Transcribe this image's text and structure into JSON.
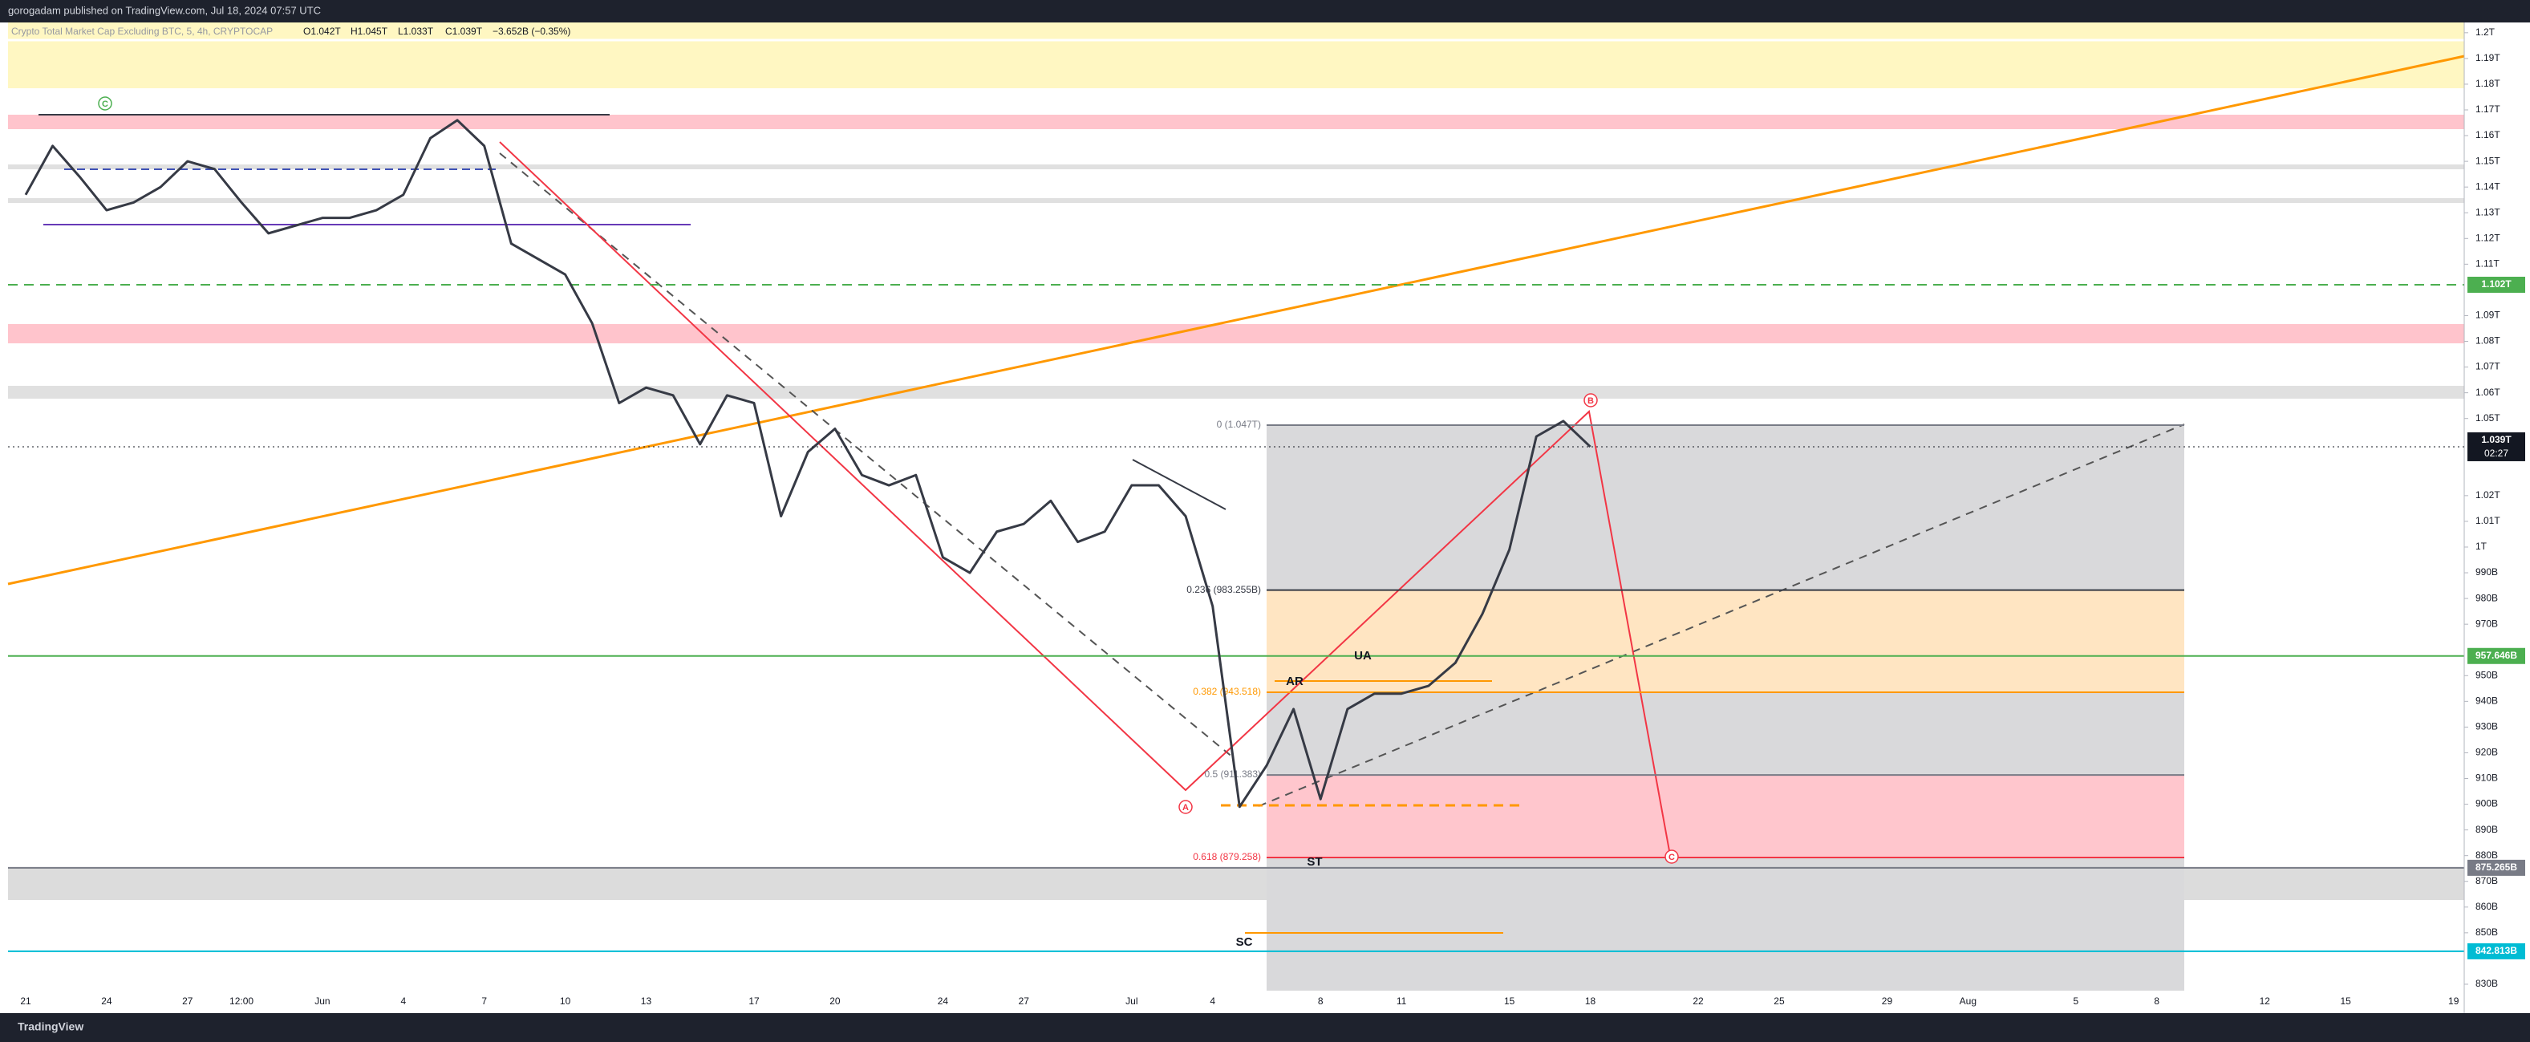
{
  "header": "gorogadam published on TradingView.com, Jul 18, 2024 07:57 UTC",
  "footer": "TradingView",
  "chart_data": {
    "type": "line",
    "title": "Crypto Total Market Cap Excluding BTC, 5, 4h, CRYPTOCAP",
    "legend_values": [
      "O1.042T",
      "H1.045T",
      "L1.033T",
      "C1.039T",
      "−3.652B (−0.35%)"
    ],
    "categories": [
      "21",
      null,
      null,
      "24",
      null,
      null,
      "27",
      null,
      "12:00",
      null,
      null,
      "Jun",
      null,
      null,
      "4",
      null,
      null,
      "7",
      null,
      null,
      "10",
      null,
      null,
      "13",
      null,
      null,
      null,
      "17",
      null,
      null,
      "20",
      null,
      null,
      null,
      "24",
      null,
      null,
      "27",
      null,
      null,
      null,
      "Jul",
      null,
      null,
      "4",
      null,
      null,
      null,
      "8",
      null,
      null,
      "11",
      null,
      null,
      null,
      "15",
      null,
      null,
      "18",
      null,
      null,
      null,
      "22",
      null,
      null,
      "25",
      null,
      null,
      null,
      "29",
      null,
      null,
      "Aug",
      null,
      null,
      null,
      "5",
      null,
      null,
      "8",
      null,
      null,
      null,
      "12",
      null,
      null,
      "15",
      null,
      null,
      null,
      "19"
    ],
    "values": [
      1137,
      1156,
      1144,
      1131,
      1134,
      1140,
      1150,
      1147,
      1134,
      1122,
      1125,
      1128,
      1128,
      1131,
      1137,
      1159,
      1166,
      1156,
      1118,
      1112,
      1106,
      1087,
      1056,
      1062,
      1059,
      1040,
      1059,
      1056,
      1012,
      1037,
      1046,
      1028,
      1024,
      1028,
      996,
      990,
      1006,
      1009,
      1018,
      1002,
      1006,
      1024,
      1024,
      1012,
      977,
      899,
      915,
      937,
      902,
      937,
      943,
      943,
      946,
      955,
      974,
      999,
      1043,
      1049,
      1039,
      null,
      null,
      null,
      null,
      null,
      null,
      null,
      null,
      null,
      null,
      null,
      null,
      null,
      null,
      null,
      null,
      null,
      null,
      null,
      null,
      null,
      null,
      null,
      null,
      null,
      null,
      null,
      null,
      null,
      null,
      null,
      null
    ],
    "color": "#363a45",
    "ylim": [
      825,
      1204
    ],
    "yticks": [
      {
        "value": 1200,
        "label": "1.2T"
      },
      {
        "value": 1190,
        "label": "1.19T"
      },
      {
        "value": 1180,
        "label": "1.18T"
      },
      {
        "value": 1170,
        "label": "1.17T"
      },
      {
        "value": 1160,
        "label": "1.16T"
      },
      {
        "value": 1150,
        "label": "1.15T"
      },
      {
        "value": 1140,
        "label": "1.14T"
      },
      {
        "value": 1130,
        "label": "1.13T"
      },
      {
        "value": 1120,
        "label": "1.12T"
      },
      {
        "value": 1110,
        "label": "1.11T"
      },
      {
        "value": 1090,
        "label": "1.09T"
      },
      {
        "value": 1080,
        "label": "1.08T"
      },
      {
        "value": 1070,
        "label": "1.07T"
      },
      {
        "value": 1060,
        "label": "1.06T"
      },
      {
        "value": 1050,
        "label": "1.05T"
      },
      {
        "value": 1020,
        "label": "1.02T"
      },
      {
        "value": 1010,
        "label": "1.01T"
      },
      {
        "value": 1000,
        "label": "1T"
      },
      {
        "value": 990,
        "label": "990B"
      },
      {
        "value": 980,
        "label": "980B"
      },
      {
        "value": 970,
        "label": "970B"
      },
      {
        "value": 950,
        "label": "950B"
      },
      {
        "value": 940,
        "label": "940B"
      },
      {
        "value": 930,
        "label": "930B"
      },
      {
        "value": 920,
        "label": "920B"
      },
      {
        "value": 910,
        "label": "910B"
      },
      {
        "value": 900,
        "label": "900B"
      },
      {
        "value": 890,
        "label": "890B"
      },
      {
        "value": 880,
        "label": "880B"
      },
      {
        "value": 870,
        "label": "870B"
      },
      {
        "value": 860,
        "label": "860B"
      },
      {
        "value": 850,
        "label": "850B"
      },
      {
        "value": 830,
        "label": "830B"
      }
    ],
    "grid": false,
    "levels": [
      {
        "value": 1102,
        "label": "1.102T",
        "color": "#4caf50",
        "dash": true
      },
      {
        "value": 957.646,
        "label": "957.646B",
        "color": "#4caf50",
        "dash": false
      },
      {
        "value": 875.265,
        "label": "875.265B",
        "color": "#787b86",
        "dash": false
      },
      {
        "value": 842.813,
        "label": "842.813B",
        "color": "#00bcd4",
        "dash": false
      }
    ],
    "last_price": {
      "value": 1039,
      "label": "1.039T",
      "countdown": "02:27"
    },
    "fib_levels": [
      {
        "value": 1047.4,
        "label": "0 (1.047T)",
        "color": "#787b86"
      },
      {
        "value": 983.255,
        "label": "0.236 (983.255B)",
        "color": "#363a45"
      },
      {
        "value": 943.518,
        "label": "0.382 (943.518)",
        "color": "#ff9800"
      },
      {
        "value": 911.383,
        "label": "0.5 (911.383)",
        "color": "#787b86"
      },
      {
        "value": 879.258,
        "label": "0.618 (879.258)",
        "color": "#f23645"
      }
    ],
    "annotations": [
      "C",
      "A",
      "B",
      "C",
      "AR",
      "UA",
      "ST",
      "SC"
    ]
  }
}
